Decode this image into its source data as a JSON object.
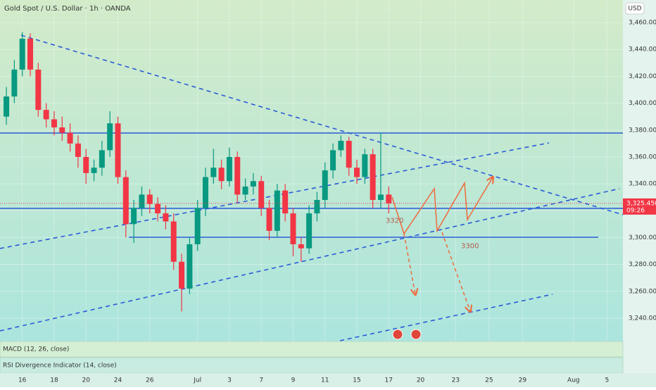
{
  "chart_data": {
    "type": "candlestick",
    "title": "Gold Spot / U.S. Dollar · 1h · OANDA",
    "currency": "USD",
    "x": [
      -1,
      -0.5,
      0,
      0.5,
      1,
      1.5,
      2,
      2.5,
      3,
      3.5,
      4,
      4.5,
      5,
      5.5,
      6,
      6.5,
      7,
      7.5,
      8,
      8.5,
      9,
      9.5,
      10,
      10.5,
      11,
      11.5,
      12,
      12.5,
      13,
      13.5,
      14,
      14.5,
      15,
      15.5,
      16,
      16.5,
      17,
      17.5,
      18,
      18.5,
      19,
      19.5,
      20,
      20.5,
      21,
      21.5,
      22,
      22.5,
      23
    ],
    "open": [
      3390,
      3405,
      3425,
      3448,
      3425,
      3395,
      3388,
      3382,
      3378,
      3370,
      3360,
      3348,
      3352,
      3365,
      3385,
      3345,
      3310,
      3322,
      3332,
      3325,
      3318,
      3312,
      3282,
      3262,
      3295,
      3322,
      3345,
      3352,
      3342,
      3360,
      3332,
      3338,
      3342,
      3322,
      3305,
      3335,
      3318,
      3295,
      3292,
      3318,
      3328,
      3350,
      3365,
      3372,
      3352,
      3345,
      3362,
      3328,
      3332
    ],
    "high": [
      3412,
      3432,
      3453,
      3452,
      3430,
      3400,
      3394,
      3390,
      3385,
      3376,
      3366,
      3358,
      3372,
      3394,
      3390,
      3350,
      3328,
      3338,
      3336,
      3330,
      3324,
      3318,
      3288,
      3300,
      3328,
      3352,
      3366,
      3358,
      3367,
      3364,
      3344,
      3348,
      3346,
      3328,
      3340,
      3340,
      3322,
      3300,
      3324,
      3334,
      3356,
      3370,
      3376,
      3375,
      3358,
      3366,
      3366,
      3378,
      3338
    ],
    "low": [
      3384,
      3400,
      3420,
      3420,
      3390,
      3382,
      3376,
      3372,
      3364,
      3352,
      3340,
      3342,
      3346,
      3360,
      3340,
      3300,
      3296,
      3316,
      3318,
      3312,
      3306,
      3276,
      3245,
      3258,
      3290,
      3316,
      3340,
      3336,
      3338,
      3326,
      3328,
      3332,
      3316,
      3298,
      3300,
      3312,
      3286,
      3282,
      3288,
      3312,
      3322,
      3344,
      3360,
      3346,
      3340,
      3340,
      3322,
      3322,
      3318
    ],
    "close": [
      3405,
      3425,
      3448,
      3425,
      3395,
      3388,
      3382,
      3378,
      3370,
      3360,
      3348,
      3352,
      3365,
      3385,
      3345,
      3310,
      3322,
      3332,
      3325,
      3318,
      3312,
      3282,
      3262,
      3295,
      3322,
      3345,
      3352,
      3342,
      3360,
      3332,
      3338,
      3342,
      3322,
      3305,
      3335,
      3318,
      3295,
      3292,
      3318,
      3328,
      3350,
      3365,
      3372,
      3352,
      3345,
      3362,
      3328,
      3332,
      3325.45
    ],
    "up_color": "#089981",
    "down_color": "#f23645",
    "xlim": [
      -1.4,
      37.7
    ],
    "ylim": [
      3222.7,
      3476.8
    ],
    "yticks": [
      {
        "value": 3460,
        "label": "3,460.000"
      },
      {
        "value": 3440,
        "label": "3,440.000"
      },
      {
        "value": 3420,
        "label": "3,420.000"
      },
      {
        "value": 3400,
        "label": "3,400.000"
      },
      {
        "value": 3380,
        "label": "3,380.000"
      },
      {
        "value": 3360,
        "label": "3,360.000"
      },
      {
        "value": 3340,
        "label": "3,340.000"
      },
      {
        "value": 3320,
        "label": "3,320.000"
      },
      {
        "value": 3300,
        "label": "3,300.000"
      },
      {
        "value": 3280,
        "label": "3,280.000"
      },
      {
        "value": 3260,
        "label": "3,260.000"
      },
      {
        "value": 3240,
        "label": "3,240.000"
      }
    ],
    "xticks": [
      {
        "value": 0,
        "label": "16"
      },
      {
        "value": 2,
        "label": "18"
      },
      {
        "value": 4,
        "label": "20"
      },
      {
        "value": 6,
        "label": "24"
      },
      {
        "value": 8,
        "label": "26"
      },
      {
        "value": 11,
        "label": "Jul"
      },
      {
        "value": 13,
        "label": "3"
      },
      {
        "value": 15,
        "label": "7"
      },
      {
        "value": 17,
        "label": "9"
      },
      {
        "value": 19,
        "label": "11"
      },
      {
        "value": 21,
        "label": "15"
      },
      {
        "value": 23,
        "label": "17"
      },
      {
        "value": 25,
        "label": "20"
      },
      {
        "value": 27.2,
        "label": "23"
      },
      {
        "value": 29.3,
        "label": "25"
      },
      {
        "value": 31.4,
        "label": "29"
      },
      {
        "value": 34.6,
        "label": "Aug"
      },
      {
        "value": 36.7,
        "label": "5"
      }
    ],
    "last_price": {
      "value": 3325.45,
      "label": "3,325.450",
      "countdown": "09:26"
    },
    "annotations": [
      {
        "text": "3320",
        "value": 3320
      },
      {
        "text": "3300",
        "value": 3300
      }
    ],
    "indicators": [
      "MACD (12, 26, close)",
      "RSI Divergence Indicator (14, close)"
    ]
  }
}
